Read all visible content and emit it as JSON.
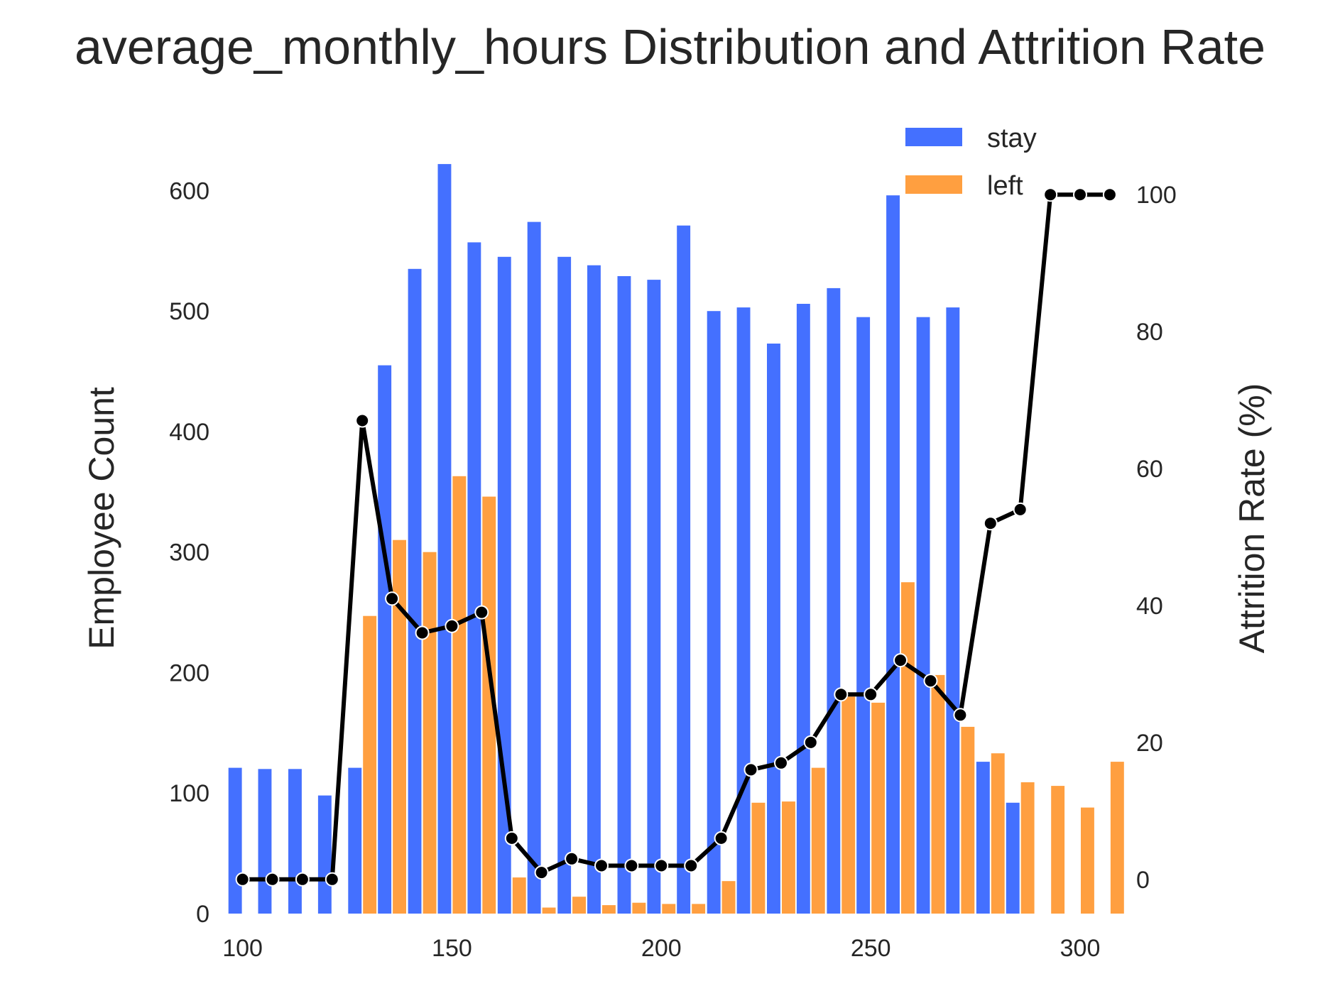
{
  "chart_data": {
    "type": "bar",
    "title": "average_monthly_hours Distribution and Attrition Rate",
    "xlabel": "",
    "ylabel": "Employee Count",
    "y2label": "Attrition Rate (%)",
    "xlim": [
      96,
      310
    ],
    "ylim": [
      0,
      625
    ],
    "y2lim": [
      -5,
      105
    ],
    "x_ticks": [
      100,
      150,
      200,
      250,
      300
    ],
    "y_ticks": [
      0,
      100,
      200,
      300,
      400,
      500,
      600
    ],
    "y2_ticks": [
      0,
      20,
      40,
      60,
      80,
      100
    ],
    "grid": false,
    "legend_position": "top-right",
    "bin_centers": [
      100,
      107.1,
      114.3,
      121.4,
      128.6,
      135.7,
      142.9,
      150,
      157.1,
      164.3,
      171.4,
      178.6,
      185.7,
      192.9,
      200,
      207.1,
      214.3,
      221.4,
      228.6,
      235.7,
      242.9,
      250,
      257.1,
      264.3,
      271.4,
      278.6,
      285.7,
      292.9,
      300,
      307.1
    ],
    "series": [
      {
        "name": "stay",
        "color": "#4470ff",
        "kind": "bar",
        "values": [
          121,
          120,
          120,
          98,
          121,
          455,
          535,
          622,
          557,
          545,
          574,
          545,
          538,
          529,
          526,
          571,
          500,
          503,
          473,
          506,
          519,
          495,
          596,
          495,
          503,
          126,
          92,
          0,
          0,
          0
        ]
      },
      {
        "name": "left",
        "color": "#ff9f40",
        "kind": "bar",
        "values": [
          0,
          0,
          0,
          0,
          247,
          310,
          300,
          363,
          346,
          30,
          5,
          14,
          7,
          9,
          8,
          8,
          27,
          92,
          93,
          121,
          180,
          175,
          275,
          198,
          155,
          133,
          109,
          106,
          88,
          126
        ]
      },
      {
        "name": "",
        "color": "#000000",
        "kind": "line",
        "axis": "right",
        "values": [
          0,
          0,
          0,
          0,
          67,
          41,
          36,
          37,
          39,
          6,
          1,
          3,
          2,
          2,
          2,
          2,
          6,
          16,
          17,
          20,
          27,
          27,
          32,
          29,
          24,
          52,
          54,
          100,
          100,
          100
        ]
      }
    ]
  }
}
